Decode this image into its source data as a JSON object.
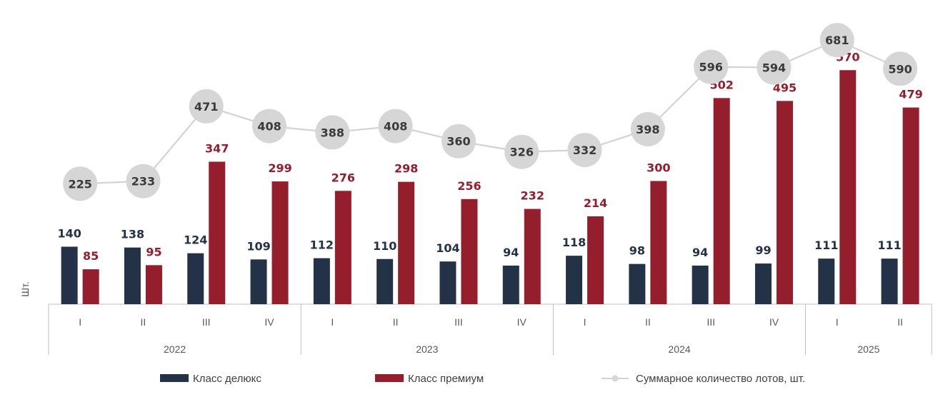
{
  "colors": {
    "deluxe": "#233247",
    "premium": "#951e2d",
    "total_line": "#d3d3d3",
    "total_marker": "#d6d6d6",
    "total_text": "#3a3a3a",
    "axis": "#bfbfbf"
  },
  "chart_data": {
    "type": "bar",
    "ylabel": "Шт.",
    "categories": [
      "I",
      "II",
      "III",
      "IV",
      "I",
      "II",
      "III",
      "IV",
      "I",
      "II",
      "III",
      "IV",
      "I",
      "II"
    ],
    "groups": [
      {
        "label": "2022",
        "count": 4
      },
      {
        "label": "2023",
        "count": 4
      },
      {
        "label": "2024",
        "count": 4
      },
      {
        "label": "2025",
        "count": 2
      }
    ],
    "series": [
      {
        "name": "Класс делюкс",
        "type": "bar",
        "values": [
          140,
          138,
          124,
          109,
          112,
          110,
          104,
          94,
          118,
          98,
          94,
          99,
          111,
          111
        ]
      },
      {
        "name": "Класс премиум",
        "type": "bar",
        "values": [
          85,
          95,
          347,
          299,
          276,
          298,
          256,
          232,
          214,
          300,
          502,
          495,
          570,
          479
        ]
      },
      {
        "name": "Суммарное количество лотов, шт.",
        "type": "line",
        "values": [
          225,
          233,
          471,
          408,
          388,
          408,
          360,
          326,
          332,
          398,
          596,
          594,
          681,
          590
        ]
      }
    ],
    "legend_position": "bottom",
    "grid": false
  }
}
